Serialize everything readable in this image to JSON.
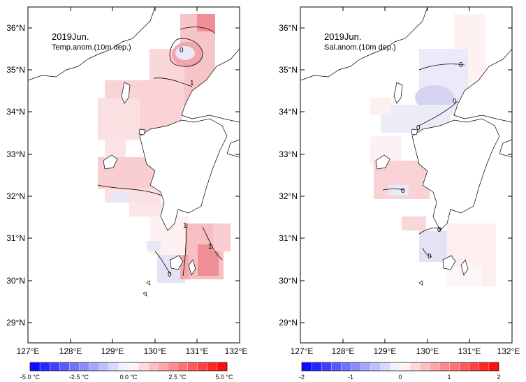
{
  "panels": [
    {
      "id": "temp",
      "title": "2019Jun.",
      "subtitle": "Temp.anom.(10m dep.)",
      "contour_labels": [
        "0",
        "1",
        "1",
        "1",
        "0"
      ],
      "colorbar_ticks": [
        "-5.0 °C",
        "-2.5 °C",
        "0.0 °C",
        "2.5 °C",
        "5.0 °C"
      ]
    },
    {
      "id": "sal",
      "title": "2019Jun.",
      "subtitle": "Sal.anom.(10m dep.)",
      "contour_labels": [
        "0",
        "0",
        "0",
        "0",
        "0",
        "0"
      ],
      "colorbar_ticks": [
        "-2",
        "-1",
        "0",
        "1",
        "2"
      ]
    }
  ],
  "axes": {
    "lat_ticks": [
      "36°N",
      "35°N",
      "34°N",
      "33°N",
      "32°N",
      "31°N",
      "30°N",
      "29°N"
    ],
    "lon_ticks": [
      "127°E",
      "128°E",
      "129°E",
      "130°E",
      "131°E",
      "132°E"
    ],
    "lat_range": [
      28.5,
      36.6
    ],
    "lon_range": [
      127,
      132
    ]
  },
  "colors": {
    "cold_end": "#0000ff",
    "warm_end": "#ff0000",
    "land": "#ffffff",
    "coast": "#000000"
  }
}
